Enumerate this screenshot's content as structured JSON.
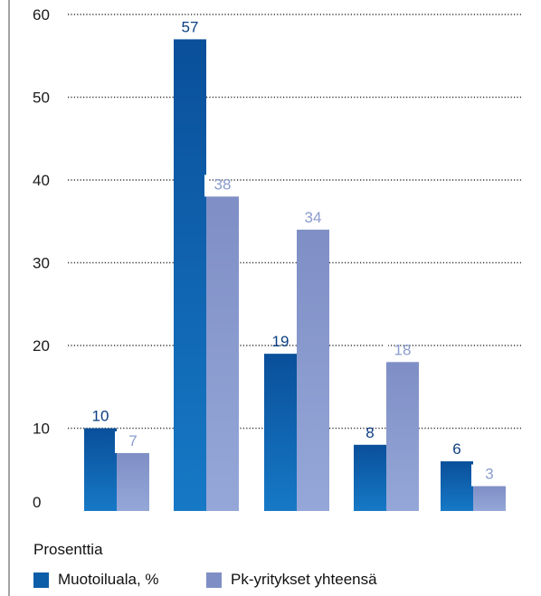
{
  "chart_data": {
    "type": "bar",
    "categories": [
      "",
      "",
      "",
      "",
      ""
    ],
    "series": [
      {
        "name": "Muotoiluala, %",
        "values": [
          10,
          57,
          19,
          8,
          6
        ],
        "color": "#0d5ea8"
      },
      {
        "name": "Pk-yritykset yhteensä",
        "values": [
          7,
          38,
          34,
          18,
          3
        ],
        "color": "#7f8fc6"
      }
    ],
    "ylim": [
      0,
      60
    ],
    "yticks": [
      0,
      10,
      20,
      30,
      40,
      50,
      60
    ],
    "grid": true,
    "legend_title": "Prosenttia",
    "legend_placement": "bottom-left",
    "label_colors": [
      "#0b3f82",
      "#8a9ccd"
    ],
    "gradient_tops": [
      "#0a4f9a",
      "#7f8fc6"
    ],
    "gradient_bottoms": [
      "#1679c6",
      "#95a7d8"
    ]
  }
}
